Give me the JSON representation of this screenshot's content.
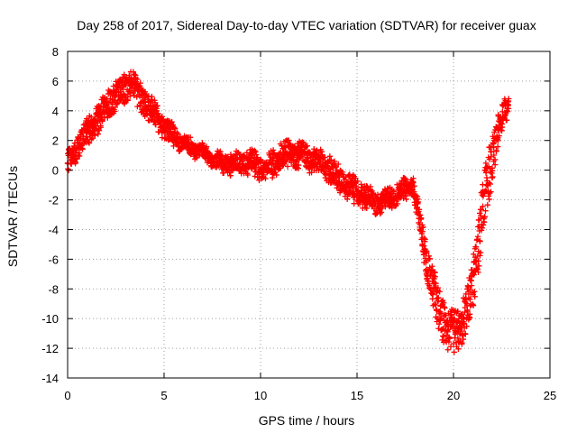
{
  "chart_data": {
    "type": "scatter",
    "title": "Day 258 of 2017, Sidereal Day-to-day VTEC variation (SDTVAR) for receiver guax",
    "xlabel": "GPS time / hours",
    "ylabel": "SDTVAR / TECUs",
    "xlim": [
      0,
      25
    ],
    "ylim": [
      -14,
      8
    ],
    "xticks": [
      0,
      5,
      10,
      15,
      20,
      25
    ],
    "yticks": [
      -14,
      -12,
      -10,
      -8,
      -6,
      -4,
      -2,
      0,
      2,
      4,
      6,
      8
    ],
    "grid": true,
    "marker": "+",
    "color": "#ff0000",
    "x_sample_step_hours": 0.025,
    "trend": {
      "x": [
        0.0,
        0.3,
        0.6,
        1.0,
        1.5,
        2.0,
        2.5,
        3.0,
        3.3,
        3.6,
        4.0,
        4.5,
        5.0,
        5.5,
        6.0,
        6.5,
        7.0,
        7.5,
        8.0,
        8.5,
        9.0,
        9.5,
        10.0,
        10.5,
        11.0,
        11.5,
        12.0,
        12.5,
        13.0,
        13.5,
        14.0,
        14.5,
        15.0,
        15.5,
        16.0,
        16.5,
        17.0,
        17.5,
        17.8,
        18.0,
        18.3,
        18.6,
        19.0,
        19.3,
        19.6,
        20.0,
        20.3,
        20.6,
        21.0,
        21.3,
        21.6,
        22.0,
        22.3,
        22.6,
        22.85
      ],
      "y": [
        0.5,
        1.0,
        1.8,
        2.5,
        3.3,
        4.3,
        5.0,
        5.6,
        6.0,
        5.2,
        4.6,
        3.8,
        2.8,
        2.3,
        1.8,
        1.5,
        1.2,
        0.8,
        0.5,
        0.4,
        0.6,
        0.5,
        0.2,
        0.3,
        0.8,
        1.2,
        1.0,
        0.8,
        0.5,
        0.1,
        -0.5,
        -1.0,
        -1.5,
        -1.9,
        -2.2,
        -2.0,
        -1.6,
        -1.2,
        -1.0,
        -1.6,
        -3.8,
        -6.0,
        -8.2,
        -9.5,
        -10.6,
        -11.0,
        -10.7,
        -10.0,
        -8.0,
        -5.0,
        -2.0,
        0.8,
        2.6,
        3.8,
        4.3
      ],
      "spread": [
        1.4,
        1.4,
        1.6,
        1.8,
        1.8,
        1.8,
        1.8,
        1.8,
        1.8,
        1.8,
        1.6,
        1.6,
        1.4,
        1.2,
        1.2,
        1.0,
        0.8,
        0.8,
        1.0,
        1.2,
        1.2,
        1.4,
        1.4,
        1.4,
        1.6,
        1.6,
        1.6,
        1.4,
        1.4,
        1.6,
        1.6,
        1.6,
        1.6,
        1.4,
        1.2,
        1.2,
        1.2,
        1.2,
        1.2,
        1.4,
        1.6,
        2.0,
        2.8,
        3.2,
        3.0,
        2.6,
        2.6,
        3.0,
        3.6,
        4.0,
        3.8,
        3.0,
        2.2,
        1.6,
        1.2
      ]
    }
  }
}
